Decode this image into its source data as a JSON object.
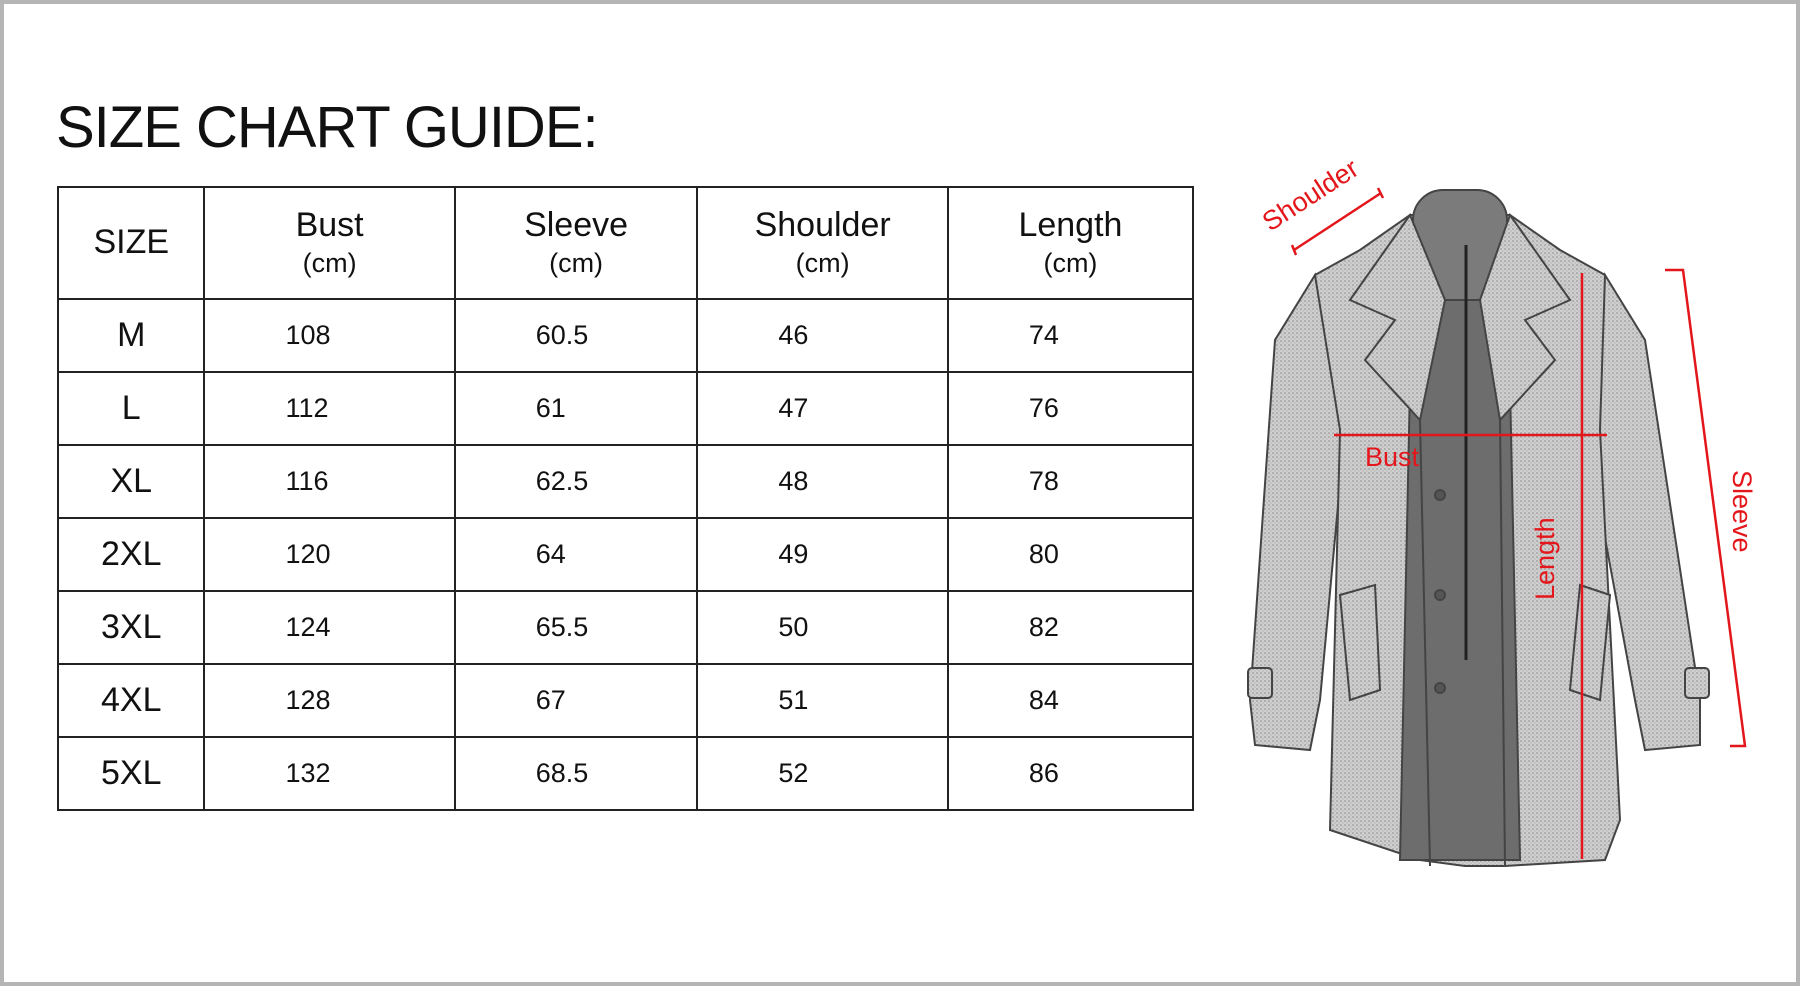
{
  "title": "SIZE CHART GUIDE:",
  "table": {
    "headers": [
      {
        "label": "SIZE",
        "unit": ""
      },
      {
        "label": "Bust",
        "unit": "(cm)"
      },
      {
        "label": "Sleeve",
        "unit": "(cm)"
      },
      {
        "label": "Shoulder",
        "unit": "(cm)"
      },
      {
        "label": "Length",
        "unit": "(cm)"
      }
    ],
    "rows": [
      [
        "M",
        "108",
        "60.5",
        "46",
        "74"
      ],
      [
        "L",
        "112",
        "61",
        "47",
        "76"
      ],
      [
        "XL",
        "116",
        "62.5",
        "48",
        "78"
      ],
      [
        "2XL",
        "120",
        "64",
        "49",
        "80"
      ],
      [
        "3XL",
        "124",
        "65.5",
        "50",
        "82"
      ],
      [
        "4XL",
        "128",
        "67",
        "51",
        "84"
      ],
      [
        "5XL",
        "132",
        "68.5",
        "52",
        "86"
      ]
    ]
  },
  "diagram": {
    "labels": {
      "shoulder": "Shoulder",
      "bust": "Bust",
      "length": "Length",
      "sleeve": "Sleeve"
    },
    "measure_color": "#e3161b",
    "coat_color": "#c9c9c9"
  }
}
